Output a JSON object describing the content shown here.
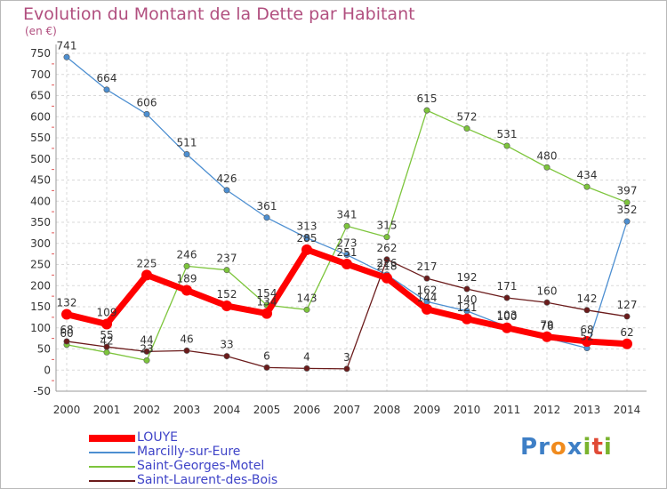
{
  "chart_data": {
    "type": "line",
    "title": "Evolution du Montant de la Dette par Habitant",
    "subtitle": "(en €)",
    "xlabel": "",
    "ylabel": "",
    "x": [
      "2000",
      "2001",
      "2002",
      "2003",
      "2004",
      "2005",
      "2006",
      "2007",
      "2008",
      "2009",
      "2010",
      "2011",
      "2012",
      "2013",
      "2014"
    ],
    "ylim": [
      -50,
      750
    ],
    "yticks": [
      -50,
      0,
      50,
      100,
      150,
      200,
      250,
      300,
      350,
      400,
      450,
      500,
      550,
      600,
      650,
      700,
      750
    ],
    "grid": true,
    "legend_position": "bottom-left",
    "series": [
      {
        "name": "LOUYE",
        "color": "#ff0000",
        "values": [
          132,
          109,
          225,
          189,
          152,
          134,
          285,
          251,
          218,
          144,
          121,
          100,
          79,
          68,
          62
        ],
        "labels": [
          "132",
          "109",
          "225",
          "189",
          "152",
          "134",
          "285",
          "251",
          "218",
          "144",
          "121",
          "100",
          "79",
          "68",
          "62"
        ]
      },
      {
        "name": "Marcilly-sur-Eure",
        "color": "#4d8fd1",
        "values": [
          741,
          664,
          606,
          511,
          426,
          361,
          313,
          273,
          226,
          162,
          140,
          103,
          76,
          52,
          352
        ],
        "labels": [
          "741",
          "664",
          "606",
          "511",
          "426",
          "361",
          "313",
          "273",
          "226",
          "162",
          "140",
          "103",
          "76",
          "52",
          "352"
        ]
      },
      {
        "name": "Saint-Georges-Motel",
        "color": "#7dc53c",
        "values": [
          60,
          42,
          23,
          246,
          237,
          154,
          143,
          341,
          315,
          615,
          572,
          531,
          480,
          434,
          397
        ],
        "labels": [
          "60",
          "42",
          "23",
          "246",
          "237",
          "154",
          "143",
          "341",
          "315",
          "615",
          "572",
          "531",
          "480",
          "434",
          "397"
        ]
      },
      {
        "name": "Saint-Laurent-des-Bois",
        "color": "#6b1b1b",
        "values": [
          68,
          55,
          44,
          46,
          33,
          6,
          4,
          3,
          262,
          217,
          192,
          171,
          160,
          142,
          127
        ],
        "labels": [
          "68",
          "55",
          "44",
          "46",
          "33",
          "6",
          "4",
          "3",
          "262",
          "217",
          "192",
          "171",
          "160",
          "142",
          "127"
        ]
      }
    ]
  },
  "logo_text": "Proxiti"
}
